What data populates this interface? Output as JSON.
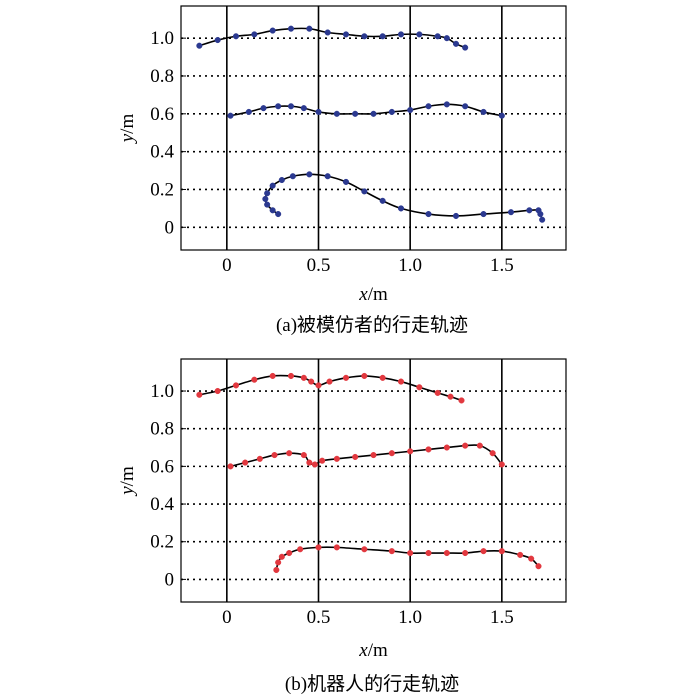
{
  "chart_data": [
    {
      "type": "line",
      "caption": "(a)被模仿者的行走轨迹",
      "xlabel_var": "x",
      "xlabel_unit": "/m",
      "ylabel_var": "y",
      "ylabel_unit": "/m",
      "xlim": [
        -0.25,
        1.85
      ],
      "ylim": [
        -0.12,
        1.17
      ],
      "xticks": [
        0,
        0.5,
        1.0,
        1.5
      ],
      "xtick_labels": [
        "0",
        "0.5",
        "1.0",
        "1.5"
      ],
      "yticks": [
        0,
        0.2,
        0.4,
        0.6,
        0.8,
        1.0
      ],
      "ytick_labels": [
        "0",
        "0.2",
        "0.4",
        "0.6",
        "0.8",
        "1.0"
      ],
      "grid": "horizontal dotted, vertical solid",
      "marker_color": "#2b3990",
      "line_color": "#000000",
      "series": [
        {
          "x": [
            -0.15,
            -0.05,
            0.05,
            0.15,
            0.25,
            0.35,
            0.45,
            0.55,
            0.65,
            0.75,
            0.85,
            0.95,
            1.05,
            1.15,
            1.2,
            1.25,
            1.3
          ],
          "y": [
            0.96,
            0.99,
            1.01,
            1.02,
            1.04,
            1.05,
            1.05,
            1.03,
            1.02,
            1.01,
            1.01,
            1.02,
            1.02,
            1.01,
            1.0,
            0.97,
            0.95
          ]
        },
        {
          "x": [
            0.02,
            0.12,
            0.2,
            0.28,
            0.35,
            0.42,
            0.5,
            0.6,
            0.7,
            0.8,
            0.9,
            1.0,
            1.1,
            1.2,
            1.3,
            1.4,
            1.5
          ],
          "y": [
            0.59,
            0.61,
            0.63,
            0.64,
            0.64,
            0.63,
            0.61,
            0.6,
            0.6,
            0.6,
            0.61,
            0.62,
            0.64,
            0.65,
            0.64,
            0.61,
            0.59
          ]
        },
        {
          "x": [
            0.28,
            0.25,
            0.22,
            0.21,
            0.22,
            0.25,
            0.3,
            0.36,
            0.45,
            0.55,
            0.65,
            0.75,
            0.85,
            0.95,
            1.1,
            1.25,
            1.4,
            1.55,
            1.65,
            1.7,
            1.71,
            1.72
          ],
          "y": [
            0.07,
            0.09,
            0.12,
            0.15,
            0.18,
            0.22,
            0.25,
            0.27,
            0.28,
            0.27,
            0.24,
            0.19,
            0.14,
            0.1,
            0.07,
            0.06,
            0.07,
            0.08,
            0.09,
            0.09,
            0.07,
            0.04
          ]
        }
      ]
    },
    {
      "type": "line",
      "caption": "(b)机器人的行走轨迹",
      "xlabel_var": "x",
      "xlabel_unit": "/m",
      "ylabel_var": "y",
      "ylabel_unit": "/m",
      "xlim": [
        -0.25,
        1.85
      ],
      "ylim": [
        -0.12,
        1.17
      ],
      "xticks": [
        0,
        0.5,
        1.0,
        1.5
      ],
      "xtick_labels": [
        "0",
        "0.5",
        "1.0",
        "1.5"
      ],
      "yticks": [
        0,
        0.2,
        0.4,
        0.6,
        0.8,
        1.0
      ],
      "ytick_labels": [
        "0",
        "0.2",
        "0.4",
        "0.6",
        "0.8",
        "1.0"
      ],
      "grid": "horizontal dotted, vertical solid",
      "marker_color": "#e2383f",
      "line_color": "#000000",
      "series": [
        {
          "x": [
            -0.15,
            -0.05,
            0.05,
            0.15,
            0.25,
            0.35,
            0.42,
            0.46,
            0.5,
            0.56,
            0.65,
            0.75,
            0.85,
            0.95,
            1.05,
            1.15,
            1.22,
            1.28
          ],
          "y": [
            0.98,
            1.0,
            1.03,
            1.06,
            1.08,
            1.08,
            1.07,
            1.05,
            1.03,
            1.05,
            1.07,
            1.08,
            1.07,
            1.05,
            1.02,
            0.99,
            0.97,
            0.95
          ]
        },
        {
          "x": [
            0.02,
            0.1,
            0.18,
            0.26,
            0.34,
            0.42,
            0.45,
            0.48,
            0.52,
            0.6,
            0.7,
            0.8,
            0.9,
            1.0,
            1.1,
            1.2,
            1.3,
            1.38,
            1.45,
            1.5
          ],
          "y": [
            0.6,
            0.62,
            0.64,
            0.66,
            0.67,
            0.66,
            0.62,
            0.61,
            0.63,
            0.64,
            0.65,
            0.66,
            0.67,
            0.68,
            0.69,
            0.7,
            0.71,
            0.71,
            0.67,
            0.61
          ]
        },
        {
          "x": [
            0.27,
            0.28,
            0.3,
            0.34,
            0.4,
            0.5,
            0.6,
            0.75,
            0.9,
            1.0,
            1.1,
            1.2,
            1.3,
            1.4,
            1.5,
            1.6,
            1.66,
            1.7
          ],
          "y": [
            0.05,
            0.09,
            0.12,
            0.14,
            0.16,
            0.17,
            0.17,
            0.16,
            0.15,
            0.14,
            0.14,
            0.14,
            0.14,
            0.15,
            0.15,
            0.13,
            0.11,
            0.07
          ]
        }
      ]
    }
  ]
}
